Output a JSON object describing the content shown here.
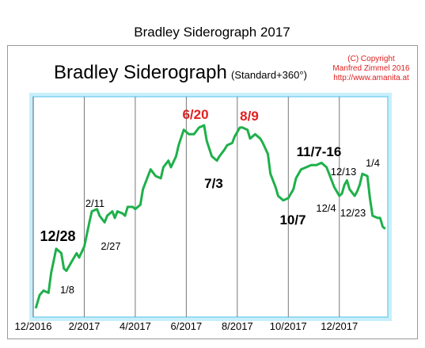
{
  "chart_data": {
    "type": "line",
    "title": "Bradley Siderograph 2017",
    "subtitle": "Bradley Siderograph",
    "subtitle_note": "(Standard+360°)",
    "credits": [
      "(C) Copyright",
      "Manfred Zimmel 2016",
      "http://www.amanita.at"
    ],
    "x": [
      0.1,
      0.25,
      0.4,
      0.6,
      0.7,
      0.9,
      1.1,
      1.2,
      1.3,
      1.5,
      1.7,
      1.8,
      2.0,
      2.2,
      2.3,
      2.5,
      2.6,
      2.8,
      2.9,
      3.1,
      3.2,
      3.3,
      3.5,
      3.6,
      3.7,
      3.9,
      4.0,
      4.2,
      4.3,
      4.5,
      4.6,
      4.8,
      5.0,
      5.1,
      5.3,
      5.4,
      5.6,
      5.7,
      5.9,
      6.1,
      6.3,
      6.5,
      6.7,
      6.8,
      7.0,
      7.2,
      7.3,
      7.5,
      7.6,
      7.8,
      7.9,
      8.1,
      8.2,
      8.4,
      8.5,
      8.7,
      8.9,
      9.0,
      9.2,
      9.3,
      9.5,
      9.6,
      9.8,
      10.0,
      10.2,
      10.3,
      10.5,
      10.7,
      10.9,
      11.1,
      11.3,
      11.5,
      11.6,
      11.8,
      12.0,
      12.1,
      12.2,
      12.3,
      12.4,
      12.6,
      12.7,
      12.8,
      12.9,
      13.1,
      13.2,
      13.3,
      13.5,
      13.6,
      13.7,
      13.8
    ],
    "series": [
      {
        "color": "#1fb04b",
        "values": [
          4,
          10,
          12,
          11,
          20,
          31,
          29,
          22,
          21,
          25,
          29,
          27,
          32,
          43,
          48,
          49,
          46,
          43,
          46,
          48,
          45,
          48,
          47,
          46,
          50,
          50,
          49,
          51,
          58,
          64,
          67,
          64,
          63,
          68,
          71,
          68,
          73,
          78,
          85,
          83,
          83,
          86,
          87,
          80,
          73,
          71,
          73,
          76,
          78,
          79,
          82,
          86,
          86,
          85,
          81,
          83,
          81,
          79,
          74,
          65,
          59,
          55,
          53,
          54,
          58,
          63,
          67,
          68,
          69,
          69,
          70,
          68,
          65,
          59,
          55,
          56,
          60,
          62,
          58,
          55,
          57,
          60,
          65,
          64,
          54,
          46,
          45,
          45,
          41,
          40
        ]
      }
    ],
    "xlim": [
      0,
      13.9
    ],
    "ylim": [
      0,
      100
    ],
    "xticks": [
      {
        "value": 0,
        "label": "12/2016"
      },
      {
        "value": 2,
        "label": "2/2017"
      },
      {
        "value": 4,
        "label": "4/2017"
      },
      {
        "value": 6,
        "label": "6/2017"
      },
      {
        "value": 8,
        "label": "8/2017"
      },
      {
        "value": 10,
        "label": "10/2017"
      },
      {
        "value": 12,
        "label": "12/2017"
      }
    ],
    "grid": true,
    "annotations": [
      "12/28",
      "1/8",
      "2/11",
      "2/27",
      "6/20",
      "7/3",
      "8/9",
      "10/7",
      "11/7-16",
      "12/13",
      "12/4",
      "12/23",
      "1/4"
    ]
  }
}
